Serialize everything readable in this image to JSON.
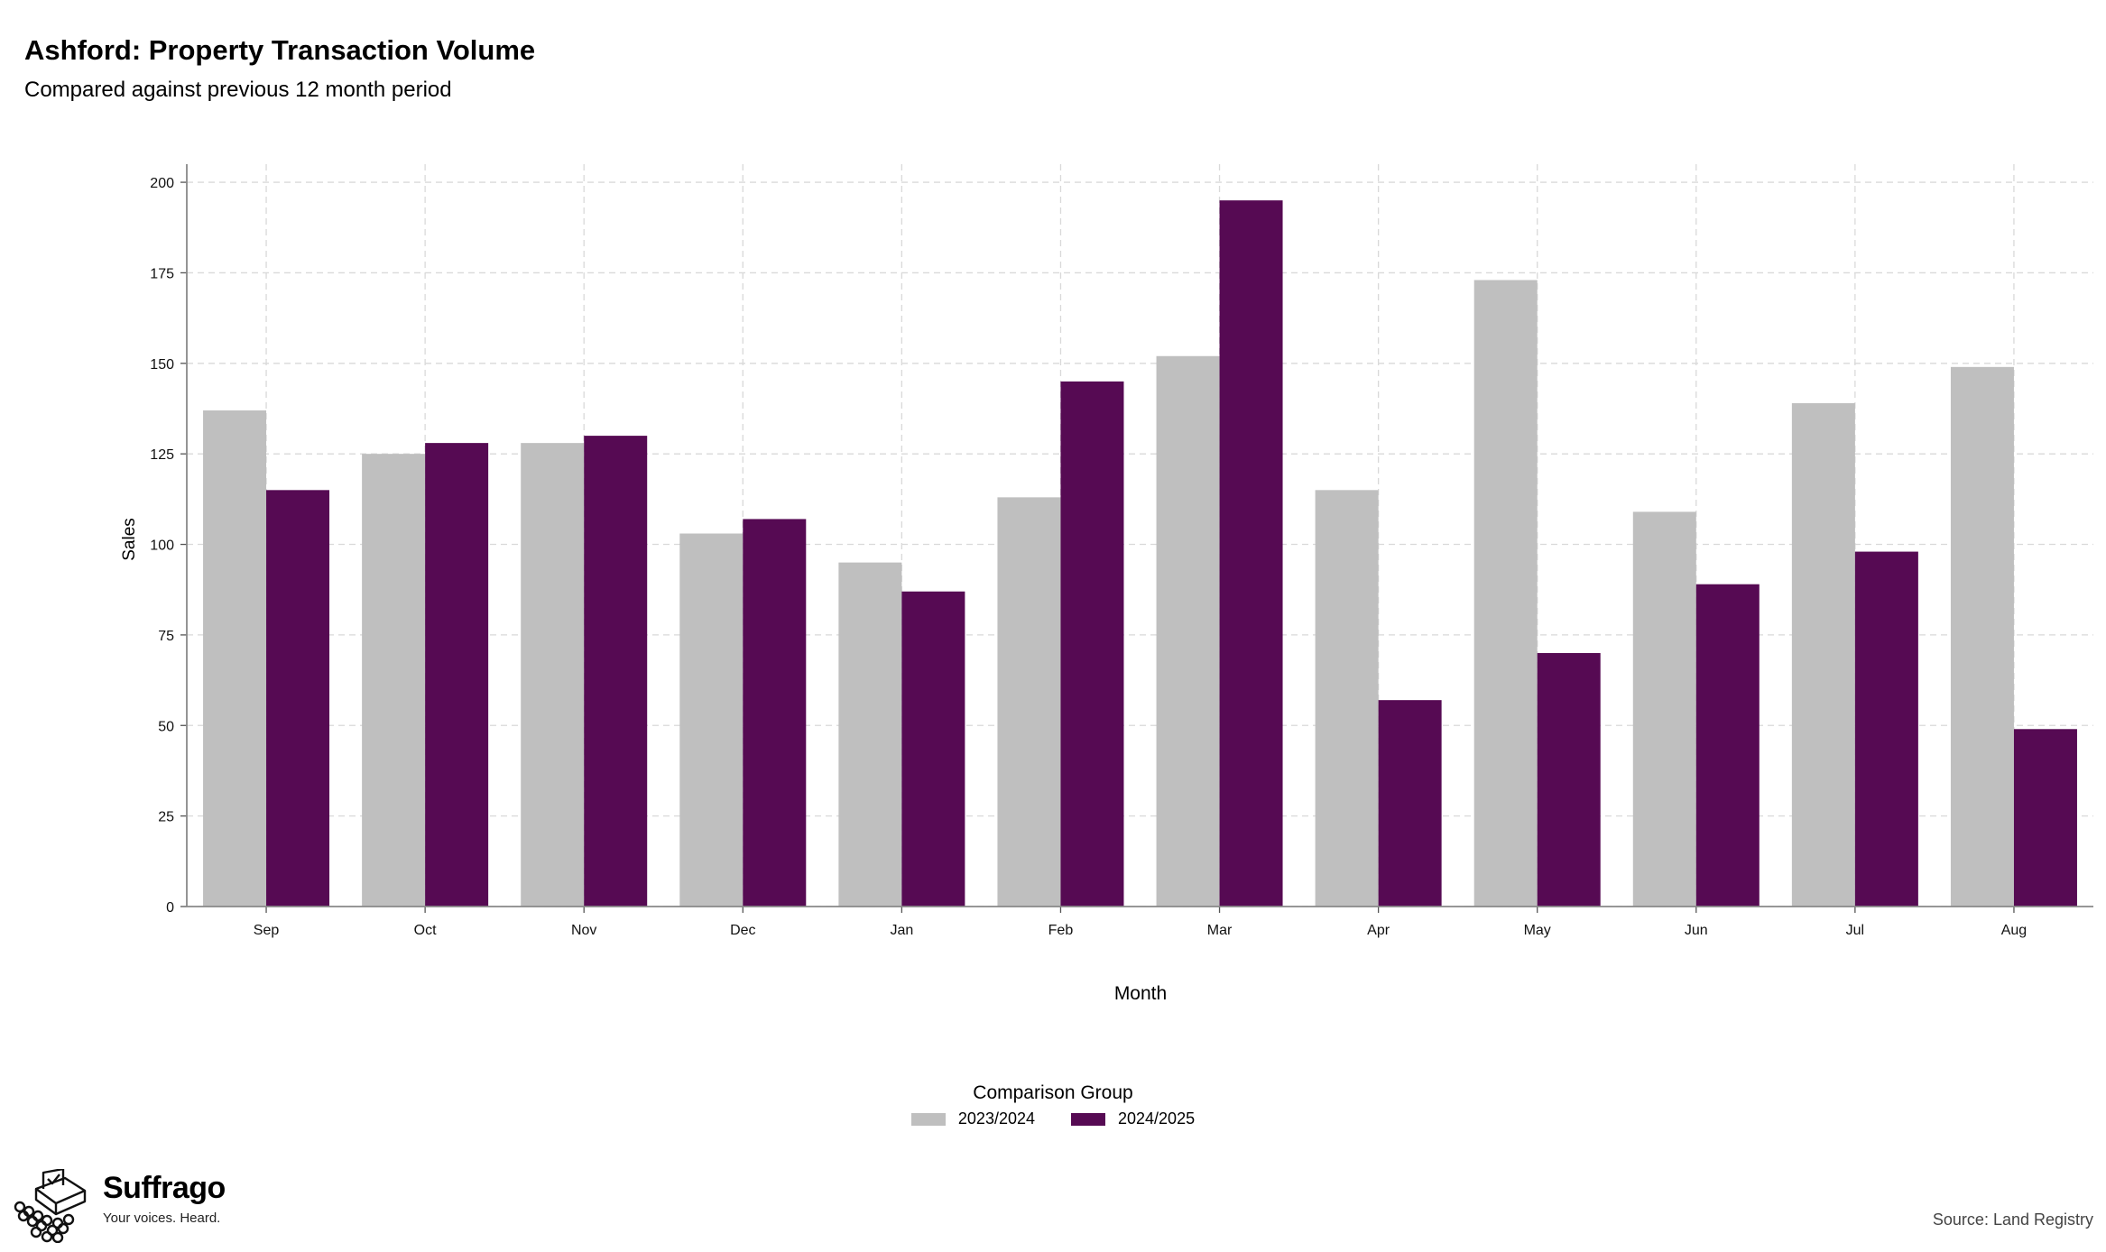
{
  "header": {
    "title": "Ashford: Property Transaction Volume",
    "subtitle": "Compared against previous 12 month period"
  },
  "chart_data": {
    "type": "bar",
    "categories": [
      "Sep",
      "Oct",
      "Nov",
      "Dec",
      "Jan",
      "Feb",
      "Mar",
      "Apr",
      "May",
      "Jun",
      "Jul",
      "Aug"
    ],
    "series": [
      {
        "name": "2023/2024",
        "color": "#bfbfbf",
        "values": [
          137,
          125,
          128,
          103,
          95,
          113,
          152,
          115,
          173,
          109,
          139,
          149
        ]
      },
      {
        "name": "2024/2025",
        "color": "#560a53",
        "values": [
          115,
          128,
          130,
          107,
          87,
          145,
          195,
          57,
          70,
          89,
          98,
          49
        ]
      }
    ],
    "xlabel": "Month",
    "ylabel": "Sales",
    "ylim": [
      0,
      205
    ],
    "yticks": [
      0,
      25,
      50,
      75,
      100,
      125,
      150,
      175,
      200
    ],
    "grid": true,
    "legend_position": "bottom-center"
  },
  "legend": {
    "title": "Comparison Group",
    "items": [
      "2023/2024",
      "2024/2025"
    ]
  },
  "brand": {
    "name": "Suffrago",
    "tagline": "Your voices. Heard."
  },
  "footer": {
    "source": "Source: Land Registry"
  }
}
